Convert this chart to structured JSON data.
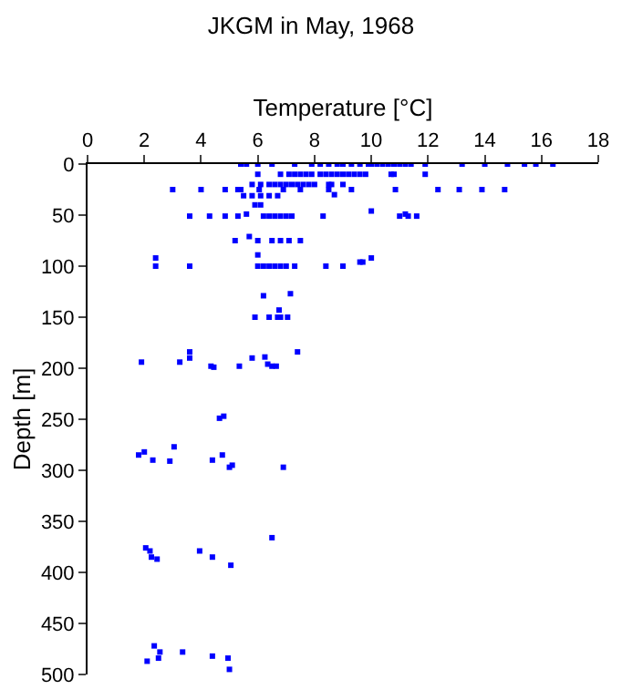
{
  "chart_data": {
    "type": "scatter",
    "title": "JKGM in May, 1968",
    "xlabel": "Temperature [°C]",
    "ylabel": "Depth [m]",
    "xlim": [
      0,
      18
    ],
    "xticks": [
      0,
      2,
      4,
      6,
      8,
      10,
      12,
      14,
      16,
      18
    ],
    "ylim": [
      500,
      0
    ],
    "yticks": [
      0,
      50,
      100,
      150,
      200,
      250,
      300,
      350,
      400,
      450,
      500
    ],
    "marker": "square",
    "series": [
      {
        "color": "#0000ff",
        "x": [
          5.4,
          5.6,
          6.0,
          6.5,
          7.3,
          7.9,
          8.2,
          8.5,
          8.8,
          9.0,
          9.3,
          9.6,
          9.9,
          10.0,
          10.2,
          10.4,
          10.6,
          10.8,
          11.0,
          11.2,
          11.4,
          11.9,
          13.2,
          14.0,
          14.8,
          15.4,
          15.8,
          16.4,
          6.0,
          6.8,
          7.1,
          7.3,
          7.5,
          7.7,
          7.9,
          8.2,
          8.4,
          8.6,
          8.8,
          9.0,
          9.2,
          9.4,
          9.6,
          9.8,
          10.7,
          10.8,
          11.9,
          5.8,
          6.1,
          6.4,
          6.6,
          6.8,
          7.0,
          7.2,
          7.4,
          7.6,
          7.8,
          8.0,
          8.5,
          8.6,
          9.0,
          3.0,
          4.0,
          4.85,
          5.3,
          5.4,
          6.05,
          6.9,
          7.5,
          8.5,
          9.3,
          10.85,
          12.35,
          13.1,
          13.9,
          14.7,
          5.5,
          5.8,
          6.1,
          6.4,
          6.7,
          8.7,
          5.9,
          6.1,
          10.0,
          3.6,
          4.3,
          4.85,
          5.3,
          5.6,
          6.2,
          6.4,
          6.6,
          6.8,
          7.0,
          7.2,
          8.3,
          11.2,
          11.0,
          11.3,
          11.6,
          5.7,
          5.2,
          6.0,
          6.5,
          6.8,
          7.1,
          7.5,
          6.0,
          2.4,
          10.0,
          2.4,
          3.6,
          6.0,
          6.2,
          6.4,
          6.6,
          6.8,
          7.0,
          7.3,
          8.4,
          9.0,
          9.6,
          9.7,
          7.15,
          6.2,
          6.75,
          5.9,
          6.4,
          6.7,
          6.8,
          7.05,
          3.6,
          7.4,
          6.25,
          3.6,
          5.8,
          1.9,
          3.25,
          6.35,
          4.35,
          4.45,
          5.35,
          6.5,
          6.65,
          4.8,
          4.65,
          3.05,
          2.0,
          1.8,
          4.75,
          2.3,
          4.4,
          2.9,
          5.1,
          5.0,
          6.9,
          6.5,
          2.05,
          2.2,
          3.95,
          2.25,
          4.4,
          2.45,
          5.05,
          2.35,
          2.55,
          3.35,
          4.4,
          2.5,
          4.95,
          2.1,
          5.0
        ],
        "values": [
          0,
          0,
          0,
          0,
          0,
          0,
          0,
          0,
          0,
          0,
          0,
          0,
          0,
          0,
          0,
          0,
          0,
          0,
          0,
          0,
          0,
          0,
          0,
          0,
          0,
          0,
          0,
          0,
          10,
          10,
          10,
          10,
          10,
          10,
          10,
          10,
          10,
          10,
          10,
          10,
          10,
          10,
          10,
          10,
          10,
          10,
          10,
          20,
          20,
          20,
          20,
          20,
          20,
          20,
          20,
          20,
          20,
          20,
          20,
          20,
          20,
          25,
          25,
          25,
          25,
          25,
          25,
          25,
          25,
          25,
          25,
          25,
          25,
          25,
          25,
          25,
          31,
          31,
          31,
          31,
          31,
          30,
          40,
          40,
          46,
          51,
          51,
          51,
          51,
          49,
          51,
          51,
          51,
          51,
          51,
          51,
          51,
          49,
          51,
          51,
          51,
          71,
          75,
          75,
          75,
          75,
          75,
          75,
          89,
          92,
          92,
          100,
          100,
          100,
          100,
          100,
          100,
          100,
          100,
          100,
          100,
          100,
          96,
          96,
          127,
          129,
          143,
          150,
          150,
          150,
          150,
          150,
          184,
          184,
          189,
          190,
          190,
          194,
          194,
          196,
          198,
          199,
          198,
          198,
          198,
          247,
          249,
          277,
          282,
          285,
          285,
          290,
          290,
          291,
          295,
          297,
          297,
          366,
          376,
          379,
          379,
          385,
          385,
          387,
          393,
          472,
          478,
          478,
          482,
          484,
          484,
          487,
          495
        ]
      }
    ]
  }
}
